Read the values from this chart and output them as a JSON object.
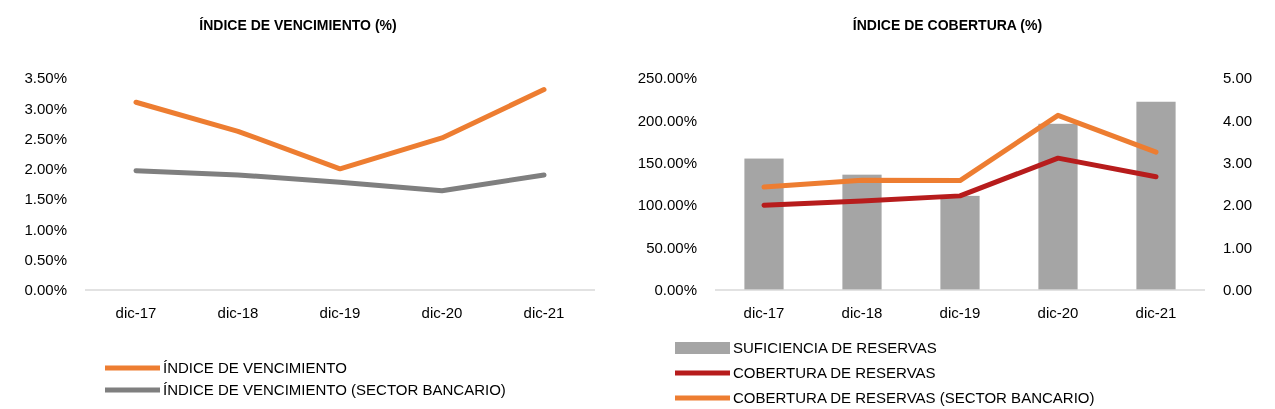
{
  "chart_data": [
    {
      "type": "line",
      "title": "ÍNDICE DE VENCIMIENTO (%)",
      "categories": [
        "dic-17",
        "dic-18",
        "dic-19",
        "dic-20",
        "dic-21"
      ],
      "series": [
        {
          "name": "ÍNDICE DE VENCIMIENTO",
          "color": "#ed7d31",
          "values": [
            3.1,
            2.62,
            2.0,
            2.51,
            3.31
          ]
        },
        {
          "name": "ÍNDICE DE VENCIMIENTO (SECTOR BANCARIO)",
          "color": "#7f7f7f",
          "values": [
            1.97,
            1.9,
            1.78,
            1.64,
            1.9
          ]
        }
      ],
      "ylim": [
        0,
        3.5
      ],
      "yticks": [
        {
          "value": 0,
          "label": "0.00%"
        },
        {
          "value": 0.5,
          "label": "0.50%"
        },
        {
          "value": 1,
          "label": "1.00%"
        },
        {
          "value": 1.5,
          "label": "1.50%"
        },
        {
          "value": 2,
          "label": "2.00%"
        },
        {
          "value": 2.5,
          "label": "2.50%"
        },
        {
          "value": 3,
          "label": "3.00%"
        },
        {
          "value": 3.5,
          "label": "3.50%"
        }
      ],
      "legend": "bottom",
      "grid": false,
      "marker": "none",
      "line_style": "solid"
    },
    {
      "type": "bar",
      "title": "ÍNDICE DE COBERTURA (%)",
      "categories": [
        "dic-17",
        "dic-18",
        "dic-19",
        "dic-20",
        "dic-21"
      ],
      "series": [
        {
          "name": "SUFICIENCIA DE RESERVAS",
          "color": "#a5a5a5",
          "values": [
            155,
            136,
            111,
            196,
            222
          ]
        },
        {
          "name": "COBERTURA DE RESERVAS",
          "type": "line",
          "axis": "y2",
          "color": "#b71c1c",
          "values": [
            2.0,
            2.1,
            2.22,
            3.11,
            2.67
          ]
        },
        {
          "name": "COBERTURA DE RESERVAS (SECTOR BANCARIO)",
          "type": "line",
          "axis": "y2",
          "color": "#ed7d31",
          "values": [
            2.43,
            2.59,
            2.58,
            4.12,
            3.25
          ]
        }
      ],
      "ylim": [
        0,
        250
      ],
      "yticks": [
        {
          "value": 0,
          "label": "0.00%"
        },
        {
          "value": 50,
          "label": "50.00%"
        },
        {
          "value": 100,
          "label": "100.00%"
        },
        {
          "value": 150,
          "label": "150.00%"
        },
        {
          "value": 200,
          "label": "200.00%"
        },
        {
          "value": 250,
          "label": "250.00%"
        }
      ],
      "y2lim": [
        0,
        5
      ],
      "y2ticks": [
        {
          "value": 0,
          "label": "0.00"
        },
        {
          "value": 1,
          "label": "1.00"
        },
        {
          "value": 2,
          "label": "2.00"
        },
        {
          "value": 3,
          "label": "3.00"
        },
        {
          "value": 4,
          "label": "4.00"
        },
        {
          "value": 5,
          "label": "5.00"
        }
      ],
      "legend": "bottom",
      "grid": false,
      "marker": "none",
      "line_style": "solid"
    }
  ]
}
